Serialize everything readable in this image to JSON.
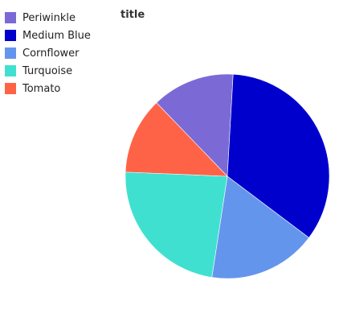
{
  "chart_data": {
    "type": "pie",
    "title": "title",
    "legend_position": "top-left",
    "slices": [
      {
        "label": "Periwinkle",
        "value": 13,
        "color": "#7b6ad6"
      },
      {
        "label": "Medium Blue",
        "value": 34,
        "color": "#0000cd"
      },
      {
        "label": "Cornflower",
        "value": 17,
        "color": "#6495ed"
      },
      {
        "label": "Turquoise",
        "value": 23,
        "color": "#40e0d0"
      },
      {
        "label": "Tomato",
        "value": 12,
        "color": "#ff6347"
      }
    ]
  }
}
